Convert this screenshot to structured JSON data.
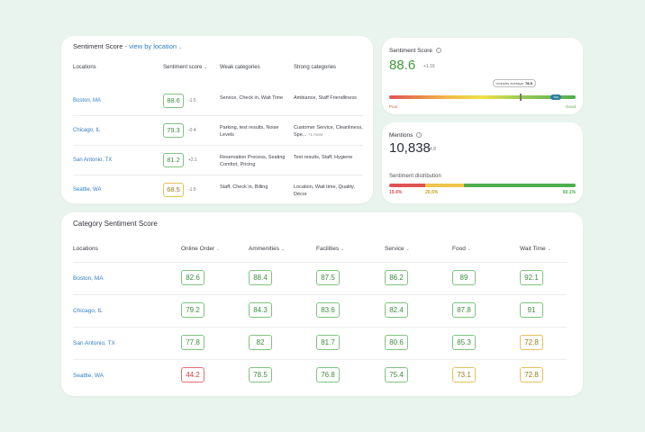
{
  "locations_card": {
    "title": "Sentiment Score -",
    "view_link": "view by location",
    "columns": [
      "Locations",
      "Sentiment score",
      "Weak categories",
      "Strong categories"
    ],
    "rows": [
      {
        "location": "Boston, MA",
        "score": "88.6",
        "color": "green",
        "delta": "-1.5",
        "weak": "Service, Check in, Wait Time",
        "strong": "Ambiance, Staff Friendliness",
        "more": ""
      },
      {
        "location": "Chicago, IL",
        "score": "79.3",
        "color": "green",
        "delta": "-0.4",
        "weak": "Parking, test results, Noise Levels",
        "strong": "Customer Service, Cleanliness, Spe...",
        "more": "+1 more"
      },
      {
        "location": "San Antonio, TX",
        "score": "81.2",
        "color": "green",
        "delta": "+2.1",
        "weak": "Reservation Process, Seating Comfort, Pricing",
        "strong": "Test results, Staff, Hygiene",
        "more": ""
      },
      {
        "location": "Seattle, WA",
        "score": "68.5",
        "color": "yellow",
        "delta": "-1.5",
        "weak": "Staff, Check in, Billing",
        "strong": "Location, Wait time, Quality, Décor",
        "more": ""
      }
    ]
  },
  "score_card": {
    "title": "Sentiment Score",
    "value": "88.6",
    "delta": "+1.16",
    "industry_label": "Industry average:",
    "industry_value": "78.9",
    "industry_position": 0.7,
    "you_label": "You",
    "you_position": 0.9,
    "poor_label": "Poor",
    "good_label": "Good"
  },
  "mentions_card": {
    "title": "Mentions",
    "value": "10,838",
    "delta": "+4.8",
    "distribution_title": "Sentiment distribution",
    "segments": [
      {
        "label": "19.4%",
        "value": 19.4,
        "color": "#e05252"
      },
      {
        "label": "20.5%",
        "value": 20.5,
        "color": "#f0c64a"
      },
      {
        "label": "60.1%",
        "value": 60.1,
        "color": "#4fae4f"
      }
    ]
  },
  "category_card": {
    "title": "Category Sentiment Score",
    "location_header": "Locations",
    "columns": [
      "Online Order",
      "Ammenities",
      "Facilities",
      "Service",
      "Food",
      "Wait Time"
    ],
    "rows": [
      {
        "location": "Boston, MA",
        "scores": [
          "82.6",
          "88.4",
          "87.5",
          "86.2",
          "89",
          "92.1"
        ],
        "colors": [
          "green",
          "green",
          "green",
          "green",
          "green",
          "green"
        ]
      },
      {
        "location": "Chicago, IL",
        "scores": [
          "79.2",
          "84.3",
          "83.6",
          "82.4",
          "87.8",
          "91"
        ],
        "colors": [
          "green",
          "green",
          "green",
          "green",
          "green",
          "green"
        ]
      },
      {
        "location": "San Antonio, TX",
        "scores": [
          "77.8",
          "82",
          "81.7",
          "80.6",
          "85.3",
          "72.8"
        ],
        "colors": [
          "green",
          "green",
          "green",
          "green",
          "green",
          "yellow"
        ]
      },
      {
        "location": "Seattle, WA",
        "scores": [
          "44.2",
          "78.5",
          "76.8",
          "75.4",
          "73.1",
          "72.8"
        ],
        "colors": [
          "red",
          "green",
          "green",
          "green",
          "yellow",
          "yellow"
        ]
      }
    ]
  }
}
